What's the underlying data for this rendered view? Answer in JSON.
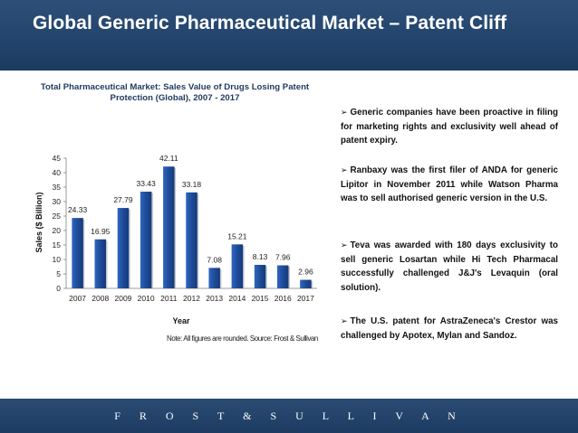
{
  "header": {
    "title": "Global Generic Pharmaceutical Market – Patent Cliff"
  },
  "chart_data": {
    "type": "bar",
    "title": "Total Pharmaceutical Market: Sales Value of Drugs Losing Patent Protection (Global), 2007 - 2017",
    "title_lines": [
      "Total Pharmaceutical Market: Sales Value of Drugs Losing Patent",
      "Protection (Global), 2007 - 2017"
    ],
    "xlabel": "Year",
    "ylabel": "Sales ($ Billion)",
    "categories": [
      "2007",
      "2008",
      "2009",
      "2010",
      "2011",
      "2012",
      "2013",
      "2014",
      "2015",
      "2016",
      "2017"
    ],
    "values": [
      24.33,
      16.95,
      27.79,
      33.43,
      42.11,
      33.18,
      7.08,
      15.21,
      8.13,
      7.96,
      2.96
    ],
    "value_labels": [
      "24.33",
      "16.95",
      "27.79",
      "33.43",
      "42.11",
      "33.18",
      "7.08",
      "15.21",
      "8.13",
      "7.96",
      "2.96"
    ],
    "ylim": [
      0,
      45
    ],
    "yticks": [
      "0",
      "5",
      "10",
      "15",
      "20",
      "25",
      "30",
      "35",
      "40",
      "45"
    ],
    "grid": false,
    "legend": "none",
    "bar_color": "#1f4e9c",
    "note": "Note: All figures are rounded. Source: Frost & Sullivan"
  },
  "bullets": [
    {
      "arrow": "➢",
      "text": "Generic companies have been proactive in filing for marketing rights and exclusivity well ahead of patent expiry."
    },
    {
      "arrow": "➢",
      "text": "Ranbaxy was the first filer of ANDA for generic Lipitor in November 2011 while Watson Pharma was to sell authorised generic version in the U.S."
    },
    {
      "arrow": "➢",
      "text": "Teva was awarded with 180 days exclusivity to sell generic Losartan while Hi Tech Pharmacal successfully challenged J&J's Levaquin (oral solution)."
    },
    {
      "arrow": "➢",
      "text": "The U.S. patent for AstraZeneca's Crestor was challenged by Apotex, Mylan and Sandoz."
    }
  ],
  "footer": {
    "brand": "F R O S T & S U L L I V A N"
  },
  "colors": {
    "header_bg": "#23456d",
    "bar": "#1f4e9c",
    "text_dark": "#111111"
  }
}
